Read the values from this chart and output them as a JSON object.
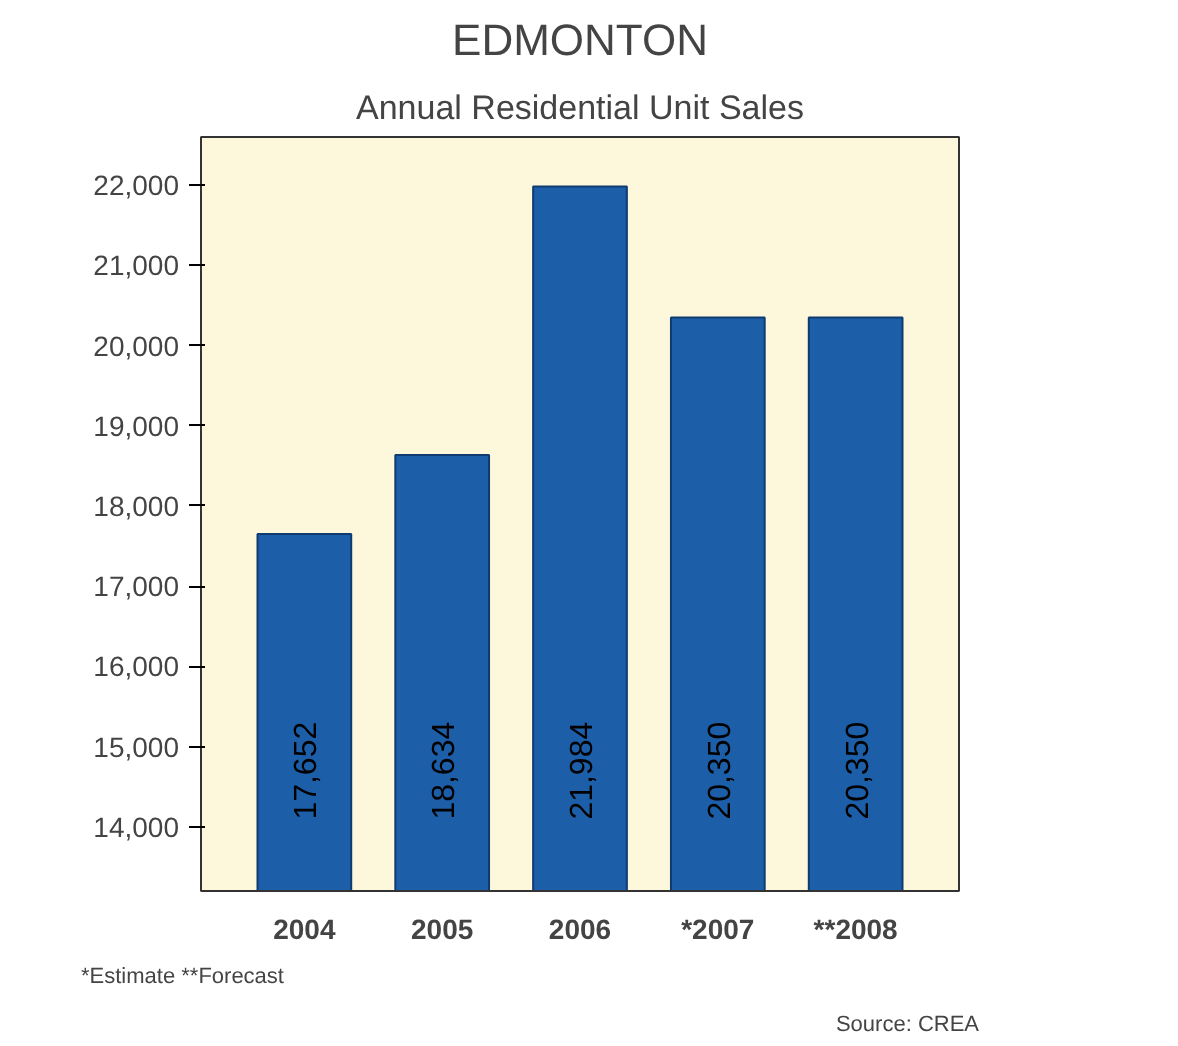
{
  "chart_data": {
    "type": "bar",
    "title": "EDMONTON",
    "subtitle": "Annual Residential Unit Sales",
    "categories": [
      "2004",
      "2005",
      "2006",
      "*2007",
      "**2008"
    ],
    "values": [
      17652,
      18634,
      21984,
      20350,
      20350
    ],
    "color": "#1c5ea8",
    "value_labels": [
      "17,652",
      "18,634",
      "21,984",
      "20,350",
      "20,350"
    ],
    "ylim": [
      13200,
      22600
    ],
    "yticks": [
      {
        "value": 14000,
        "label": "14,000"
      },
      {
        "value": 15000,
        "label": "15,000"
      },
      {
        "value": 16000,
        "label": "16,000"
      },
      {
        "value": 17000,
        "label": "17,000"
      },
      {
        "value": 18000,
        "label": "18,000"
      },
      {
        "value": 19000,
        "label": "19,000"
      },
      {
        "value": 20000,
        "label": "20,000"
      },
      {
        "value": 21000,
        "label": "21,000"
      },
      {
        "value": 22000,
        "label": "22,000"
      }
    ],
    "grid": false,
    "annotations": [
      "*Estimate  **Forecast",
      "Source: CREA"
    ]
  }
}
